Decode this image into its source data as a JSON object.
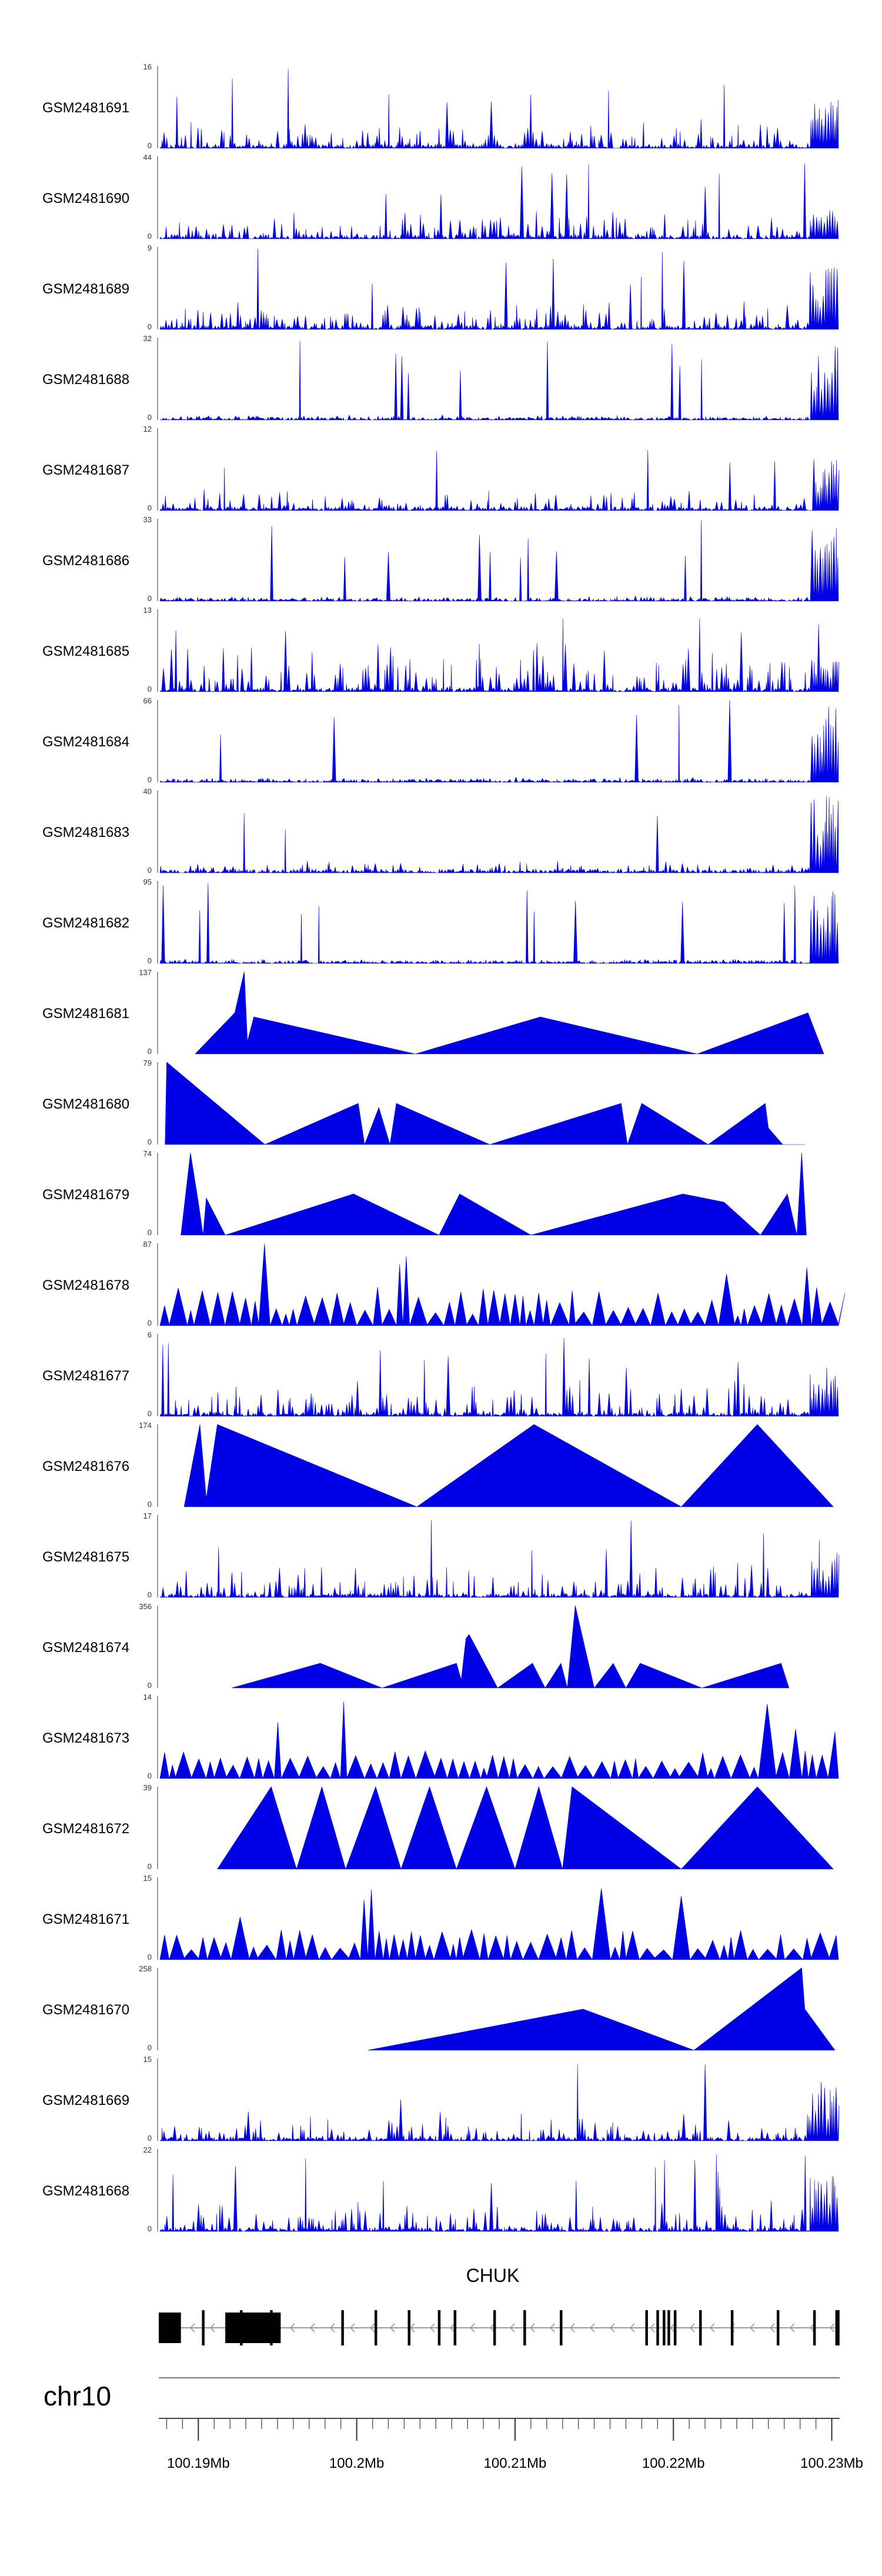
{
  "chart_data": {
    "type": "area",
    "title": "",
    "chromosome": "chr10",
    "gene": {
      "name": "CHUK",
      "strand": "minus"
    },
    "x_axis": {
      "unit": "Mb",
      "range": [
        100.1875,
        100.2305
      ],
      "ticks": [
        100.19,
        100.2,
        100.21,
        100.22,
        100.23
      ],
      "tick_labels": [
        "100.19Mb",
        "100.2Mb",
        "100.21Mb",
        "100.22Mb",
        "100.23Mb"
      ],
      "minor_step": 0.001
    },
    "gene_model": {
      "start": 100.1875,
      "end": 100.2305,
      "thick_exons": [
        [
          100.1875,
          100.1889
        ],
        [
          100.1917,
          100.1952
        ]
      ],
      "exons": [
        100.1903,
        100.1927,
        100.1946,
        100.1991,
        100.2012,
        100.2033,
        100.2052,
        100.2062,
        100.2087,
        100.2106,
        100.2129,
        100.2183,
        100.219,
        100.2194,
        100.2197,
        100.2201,
        100.2217,
        100.2237,
        100.2266,
        100.2289,
        100.2303,
        100.2304
      ]
    },
    "tracks": [
      {
        "name": "GSM2481691",
        "ymax": 16,
        "ymin": 0,
        "style": "dense",
        "seed": 91,
        "level": 0.3,
        "hot": 0.6
      },
      {
        "name": "GSM2481690",
        "ymax": 44,
        "ymin": 0,
        "style": "dense",
        "seed": 90,
        "level": 0.3,
        "hot": 0.35
      },
      {
        "name": "GSM2481689",
        "ymax": 9,
        "ymin": 0,
        "style": "dense",
        "seed": 89,
        "level": 0.3,
        "hot": 0.75
      },
      {
        "name": "GSM2481688",
        "ymax": 32,
        "ymin": 0,
        "style": "dense",
        "seed": 88,
        "level": 0.05,
        "hot": 0.95
      },
      {
        "name": "GSM2481687",
        "ymax": 12,
        "ymin": 0,
        "style": "dense",
        "seed": 87,
        "level": 0.22,
        "hot": 0.65
      },
      {
        "name": "GSM2481686",
        "ymax": 33,
        "ymin": 0,
        "style": "dense",
        "seed": 86,
        "level": 0.05,
        "hot": 0.9
      },
      {
        "name": "GSM2481685",
        "ymax": 13,
        "ymin": 0,
        "style": "dense",
        "seed": 85,
        "level": 0.5,
        "hot": 0.4
      },
      {
        "name": "GSM2481684",
        "ymax": 66,
        "ymin": 0,
        "style": "dense",
        "seed": 84,
        "level": 0.05,
        "hot": 0.95
      },
      {
        "name": "GSM2481683",
        "ymax": 40,
        "ymin": 0,
        "style": "dense",
        "seed": 83,
        "level": 0.12,
        "hot": 0.95
      },
      {
        "name": "GSM2481682",
        "ymax": 95,
        "ymin": 0,
        "style": "dense",
        "seed": 82,
        "level": 0.04,
        "hot": 0.95
      },
      {
        "name": "GSM2481681",
        "ymax": 137,
        "ymin": 0,
        "style": "points",
        "points": [
          [
            100.1898,
            0
          ],
          [
            100.1923,
            0.5
          ],
          [
            100.1929,
            1.0
          ],
          [
            100.1931,
            0.15
          ],
          [
            100.1935,
            0.45
          ],
          [
            100.2037,
            0
          ],
          [
            100.2116,
            0.45
          ],
          [
            100.2215,
            0
          ],
          [
            100.2285,
            0.5
          ],
          [
            100.2295,
            0
          ]
        ]
      },
      {
        "name": "GSM2481680",
        "ymax": 79,
        "ymin": 0,
        "style": "points",
        "points": [
          [
            100.1879,
            0
          ],
          [
            100.188,
            1.0
          ],
          [
            100.1942,
            0
          ],
          [
            100.2001,
            0.5
          ],
          [
            100.2005,
            0
          ],
          [
            100.2014,
            0.45
          ],
          [
            100.2021,
            0
          ],
          [
            100.2025,
            0.5
          ],
          [
            100.2084,
            0
          ],
          [
            100.2167,
            0.5
          ],
          [
            100.2171,
            0
          ],
          [
            100.218,
            0.5
          ],
          [
            100.2222,
            0
          ],
          [
            100.2258,
            0.5
          ],
          [
            100.226,
            0.2
          ],
          [
            100.2269,
            0
          ],
          [
            100.2283,
            0
          ]
        ]
      },
      {
        "name": "GSM2481679",
        "ymax": 74,
        "ymin": 0,
        "style": "points",
        "points": [
          [
            100.1889,
            0
          ],
          [
            100.1895,
            1.0
          ],
          [
            100.19,
            0.4
          ],
          [
            100.1903,
            0
          ],
          [
            100.1905,
            0.45
          ],
          [
            100.1917,
            0
          ],
          [
            100.1998,
            0.5
          ],
          [
            100.2052,
            0
          ],
          [
            100.2065,
            0.5
          ],
          [
            100.211,
            0
          ],
          [
            100.2206,
            0.5
          ],
          [
            100.2232,
            0.4
          ],
          [
            100.2255,
            0
          ],
          [
            100.2272,
            0.5
          ],
          [
            100.2278,
            0
          ],
          [
            100.2281,
            1.0
          ],
          [
            100.2284,
            0
          ]
        ]
      },
      {
        "name": "GSM2481678",
        "ymax": 87,
        "ymin": 0,
        "style": "dense",
        "seed": 78,
        "level": 0.35,
        "hot": 0.45,
        "sparse": true
      },
      {
        "name": "GSM2481677",
        "ymax": 6,
        "ymin": 0,
        "style": "dense",
        "seed": 77,
        "level": 0.35,
        "hot": 0.55
      },
      {
        "name": "GSM2481676",
        "ymax": 174,
        "ymin": 0,
        "style": "points",
        "points": [
          [
            100.1891,
            0
          ],
          [
            100.1901,
            1.0
          ],
          [
            100.1905,
            0.1
          ],
          [
            100.1912,
            1.0
          ],
          [
            100.2038,
            0
          ],
          [
            100.2112,
            1.0
          ],
          [
            100.2205,
            0
          ],
          [
            100.2253,
            1.0
          ],
          [
            100.2301,
            0
          ]
        ]
      },
      {
        "name": "GSM2481675",
        "ymax": 17,
        "ymin": 0,
        "style": "dense",
        "seed": 75,
        "level": 0.35,
        "hot": 0.55
      },
      {
        "name": "GSM2481674",
        "ymax": 356,
        "ymin": 0,
        "style": "points",
        "points": [
          [
            100.1921,
            0
          ],
          [
            100.1977,
            0.3
          ],
          [
            100.2016,
            0
          ],
          [
            100.2063,
            0.3
          ],
          [
            100.2066,
            0.1
          ],
          [
            100.2069,
            0.6
          ],
          [
            100.2071,
            0.65
          ],
          [
            100.2089,
            0
          ],
          [
            100.2111,
            0.3
          ],
          [
            100.2119,
            0
          ],
          [
            100.2129,
            0.3
          ],
          [
            100.2133,
            0
          ],
          [
            100.2138,
            1.0
          ],
          [
            100.215,
            0
          ],
          [
            100.2162,
            0.3
          ],
          [
            100.217,
            0
          ],
          [
            100.2179,
            0.3
          ],
          [
            100.2218,
            0
          ],
          [
            100.2268,
            0.3
          ],
          [
            100.2273,
            0
          ]
        ]
      },
      {
        "name": "GSM2481673",
        "ymax": 14,
        "ymin": 0,
        "style": "dense",
        "seed": 73,
        "level": 0.22,
        "hot": 0.7,
        "sparse": true
      },
      {
        "name": "GSM2481672",
        "ymax": 39,
        "ymin": 0,
        "style": "points",
        "points": [
          [
            100.1912,
            0
          ],
          [
            100.1946,
            1.0
          ],
          [
            100.1962,
            0
          ],
          [
            100.1978,
            1.0
          ],
          [
            100.1993,
            0
          ],
          [
            100.2012,
            1.0
          ],
          [
            100.2028,
            0
          ],
          [
            100.2046,
            1.0
          ],
          [
            100.2063,
            0
          ],
          [
            100.2082,
            1.0
          ],
          [
            100.21,
            0
          ],
          [
            100.2115,
            1.0
          ],
          [
            100.213,
            0
          ],
          [
            100.2136,
            1.0
          ],
          [
            100.2205,
            0
          ],
          [
            100.2253,
            1.0
          ],
          [
            100.2301,
            0
          ]
        ]
      },
      {
        "name": "GSM2481671",
        "ymax": 15,
        "ymin": 0,
        "style": "dense",
        "seed": 71,
        "level": 0.25,
        "hot": 0.6,
        "sparse": true
      },
      {
        "name": "GSM2481670",
        "ymax": 258,
        "ymin": 0,
        "style": "points",
        "points": [
          [
            100.2007,
            0
          ],
          [
            100.2143,
            0.5
          ],
          [
            100.2213,
            0
          ],
          [
            100.2281,
            1.0
          ],
          [
            100.2283,
            0.5
          ],
          [
            100.2302,
            0
          ]
        ]
      },
      {
        "name": "GSM2481669",
        "ymax": 15,
        "ymin": 0,
        "style": "dense",
        "seed": 69,
        "level": 0.3,
        "hot": 0.65
      },
      {
        "name": "GSM2481668",
        "ymax": 22,
        "ymin": 0,
        "style": "dense",
        "seed": 68,
        "level": 0.32,
        "hot": 0.7
      }
    ],
    "colors": {
      "fill": "#0000e6",
      "axis": "#444444",
      "gene": "#000000",
      "intron_arrow": "#9a9a9a"
    }
  }
}
